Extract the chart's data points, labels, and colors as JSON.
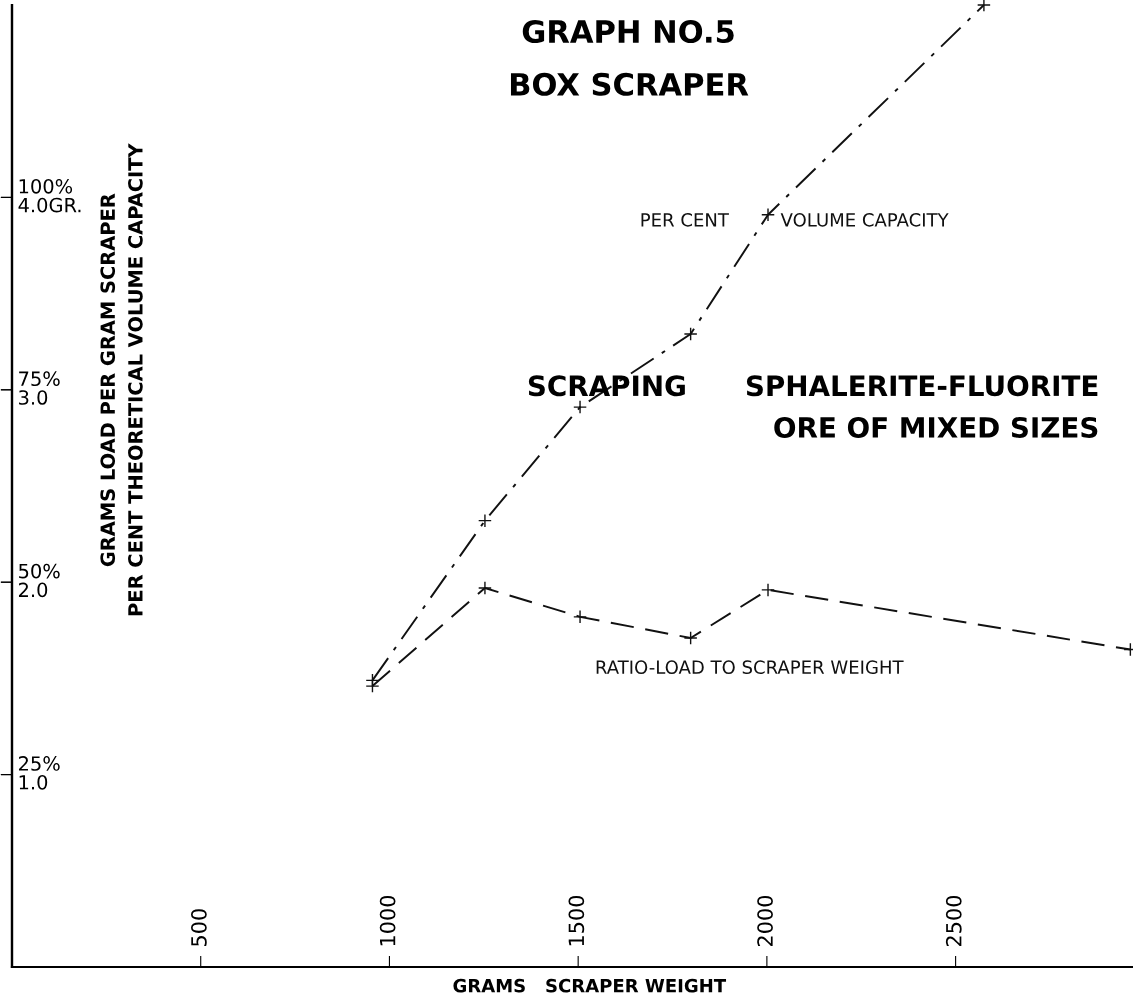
{
  "chart_data": {
    "type": "line",
    "title": "GRAPH NO.5\nBOX SCRAPER",
    "xlabel": "GRAMS   SCRAPER WEIGHT",
    "ylabel": "GRAMS LOAD PER GRAM SCRAPER\nPER CENT THEORETICAL VOLUME CAPACITY",
    "annotations": [
      "SCRAPING      SPHALERITE-FLUORITE\nORE OF MIXED SIZES"
    ],
    "series": [
      {
        "name": "PER CENT         VOLUME CAPACITY",
        "color": "#111111",
        "line_style": "dashdot",
        "x": [
          955,
          1253,
          1505,
          1798,
          2003,
          2575
        ],
        "values": [
          1.49,
          2.32,
          2.91,
          3.29,
          3.91,
          5.0
        ]
      },
      {
        "name": "RATIO-LOAD TO SCRAPER WEIGHT",
        "color": "#111111",
        "line_style": "dashed",
        "x": [
          955,
          1253,
          1505,
          1798,
          2003,
          2963
        ],
        "values": [
          1.46,
          1.97,
          1.82,
          1.71,
          1.96,
          1.65
        ]
      }
    ],
    "marker": "cross",
    "xlim": [
      0,
      2970
    ],
    "ylim": [
      0,
      5.0
    ],
    "xticks": [
      500,
      1000,
      1500,
      2000,
      2500
    ],
    "yticks": [
      {
        "value": 1.0,
        "label": "1.0"
      },
      {
        "value": 2.0,
        "label": "2.0"
      },
      {
        "value": 3.0,
        "label": "3.0"
      },
      {
        "value": 4.0,
        "label": "4.0GR."
      }
    ],
    "y2lim": [
      0,
      125
    ],
    "y2ticks": [
      {
        "value": 25,
        "label": "25%"
      },
      {
        "value": 50,
        "label": "50%"
      },
      {
        "value": 75,
        "label": "75%"
      },
      {
        "value": 100,
        "label": "100%"
      }
    ],
    "grid": false,
    "legend": false
  }
}
